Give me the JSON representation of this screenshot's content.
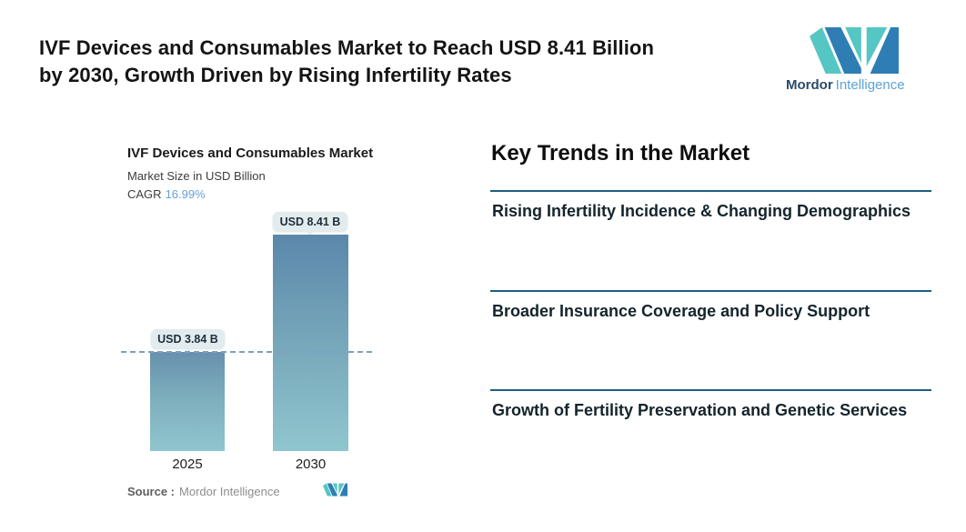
{
  "header": {
    "title_line1": "IVF Devices and Consumables Market to Reach USD 8.41 Billion",
    "title_line2": "by 2030, Growth Driven by Rising Infertility Rates"
  },
  "logo": {
    "word_primary": "Mordor",
    "word_secondary": "Intelligence"
  },
  "chart": {
    "title": "IVF Devices and Consumables Market",
    "subtitle": "Market Size in USD Billion",
    "cagr_label": "CAGR",
    "cagr_value": "16.99%",
    "bars": [
      {
        "year": "2025",
        "label": "USD 3.84 B",
        "value": 3.84
      },
      {
        "year": "2030",
        "label": "USD 8.41 B",
        "value": 8.41
      }
    ],
    "source_label": "Source :",
    "source_value": "Mordor Intelligence"
  },
  "trends": {
    "heading": "Key Trends in the Market",
    "items": [
      "Rising Infertility Incidence & Changing Demographics",
      "Broader Insurance Coverage and Policy Support",
      "Growth of Fertility Preservation and Genetic Services"
    ]
  },
  "colors": {
    "accent_rule": "#1d5f80",
    "cagr_value": "#6aa0d8",
    "bar_gradient_top": "#5b87ab",
    "bar_gradient_bottom": "#90c6ce",
    "dashed_reference_line": "#7d9fc2",
    "tooltip_background": "#e2ebee",
    "logo_teal": "#56c6c4",
    "logo_blue": "#2e7eb5"
  },
  "chart_data": {
    "type": "bar",
    "title": "IVF Devices and Consumables Market",
    "ylabel": "Market Size in USD Billion",
    "cagr": "16.99%",
    "categories": [
      "2025",
      "2030"
    ],
    "values": [
      3.84,
      8.41
    ],
    "data_labels": [
      "USD 3.84 B",
      "USD 8.41 B"
    ],
    "reference_line_y": 3.84,
    "grid": false,
    "legend": false,
    "ylim": [
      0,
      8.41
    ]
  }
}
